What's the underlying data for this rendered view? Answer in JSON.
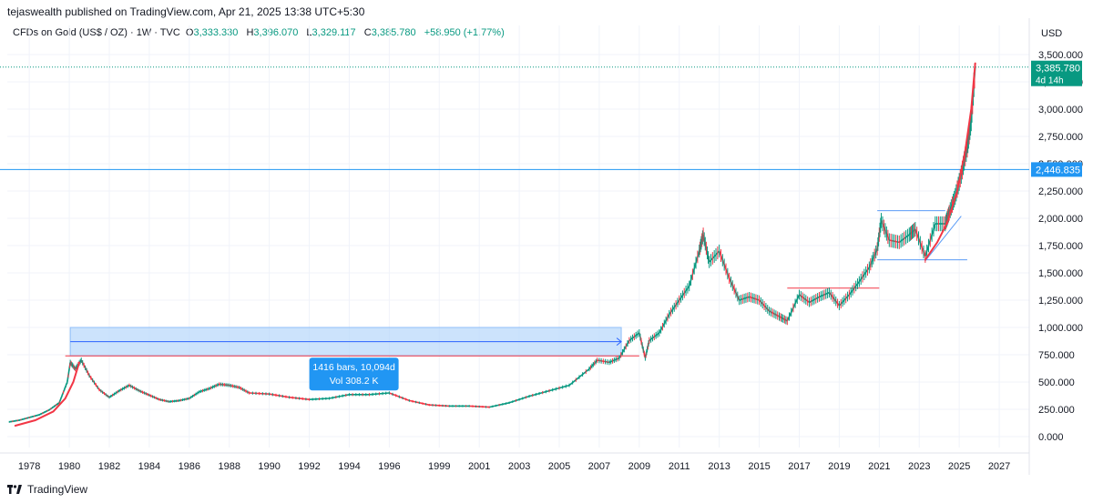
{
  "header": {
    "published": "tejaswealth published on TradingView.com, Apr 21, 2025 13:38 UTC+5:30"
  },
  "legend": {
    "symbol": "CFDs on Gold (US$ / OZ) · 1W · TVC",
    "open_key": "O",
    "open": "3,333.330",
    "high_key": "H",
    "high": "3,396.070",
    "low_key": "L",
    "low": "3,329.117",
    "close_key": "C",
    "close": "3,385.780",
    "change": "+58.950 (+1.77%)"
  },
  "footer": {
    "brand": "TradingView"
  },
  "colors": {
    "up": "#089981",
    "down": "#f23645",
    "curve": "#f23645",
    "hline": "#2962ff",
    "measure_fill": "#bbd9fb",
    "label_bg": "#2962ff"
  },
  "chart_data": {
    "type": "line",
    "currency": "USD",
    "ylim": [
      -100,
      3600
    ],
    "yticks": [
      "3,500.000",
      "3,250.000",
      "3,000.000",
      "2,750.000",
      "2,500.000",
      "2,250.000",
      "2,000.000",
      "1,750.000",
      "1,500.000",
      "1,250.000",
      "1,000.000",
      "750.000",
      "500.000",
      "250.000",
      "0.000"
    ],
    "ytick_values": [
      3500,
      3250,
      3000,
      2750,
      2500,
      2250,
      2000,
      1750,
      1500,
      1250,
      1000,
      750,
      500,
      250,
      0
    ],
    "xlim": [
      1976.9,
      2028.0
    ],
    "xticks": [
      "1978",
      "1980",
      "1982",
      "1984",
      "1986",
      "1988",
      "1990",
      "1992",
      "1994",
      "1996",
      "1999",
      "2001",
      "2003",
      "2005",
      "2007",
      "2009",
      "2011",
      "2013",
      "2015",
      "2017",
      "2019",
      "2021",
      "2023",
      "2025",
      "2027"
    ],
    "xtick_values": [
      1978,
      1980,
      1982,
      1984,
      1986,
      1988,
      1990,
      1992,
      1994,
      1996,
      1998.5,
      2000.5,
      2002.5,
      2004.5,
      2006.5,
      2008.5,
      2010.5,
      2012.5,
      2014.5,
      2016.5,
      2018.5,
      2020.5,
      2022.5,
      2024.5,
      2026.5
    ],
    "series": [
      {
        "x": [
          1977.0,
          1977.5,
          1978.0,
          1978.5,
          1979.0,
          1979.5,
          1979.9,
          1980.05,
          1980.3,
          1980.6,
          1981.0,
          1981.5,
          1982.0,
          1982.5,
          1983.0,
          1983.5,
          1984.0,
          1984.5,
          1985.0,
          1985.5,
          1986.0,
          1986.5,
          1987.0,
          1987.5,
          1988.0,
          1988.5,
          1989.0,
          1990.0,
          1991.0,
          1992.0,
          1993.0,
          1994.0,
          1995.0,
          1996.0,
          1997.0,
          1998.0,
          1999.0,
          2000.0,
          2001.0,
          2002.0,
          2003.0,
          2004.0,
          2005.0,
          2006.0,
          2006.4,
          2007.0,
          2007.5,
          2008.0,
          2008.5,
          2008.8,
          2009.0,
          2009.5,
          2010.0,
          2010.5,
          2011.0,
          2011.5,
          2011.7,
          2012.0,
          2012.5,
          2013.0,
          2013.5,
          2014.0,
          2014.5,
          2015.0,
          2015.5,
          2015.9,
          2016.5,
          2017.0,
          2017.5,
          2018.0,
          2018.5,
          2019.0,
          2019.5,
          2020.0,
          2020.4,
          2020.6,
          2021.0,
          2021.5,
          2022.0,
          2022.3,
          2022.8,
          2023.3,
          2023.8,
          2024.0,
          2024.3,
          2024.6,
          2024.9,
          2025.1,
          2025.3
        ],
        "y": [
          135,
          150,
          175,
          200,
          245,
          310,
          500,
          680,
          620,
          700,
          560,
          430,
          360,
          420,
          470,
          420,
          380,
          340,
          320,
          330,
          350,
          410,
          440,
          480,
          470,
          450,
          400,
          390,
          360,
          340,
          350,
          385,
          385,
          400,
          330,
          290,
          280,
          280,
          270,
          310,
          370,
          420,
          470,
          620,
          700,
          680,
          720,
          880,
          950,
          720,
          880,
          950,
          1120,
          1250,
          1380,
          1700,
          1850,
          1600,
          1700,
          1450,
          1250,
          1280,
          1250,
          1150,
          1100,
          1060,
          1300,
          1230,
          1280,
          1320,
          1200,
          1300,
          1420,
          1550,
          1720,
          1980,
          1800,
          1780,
          1850,
          1900,
          1650,
          1950,
          1950,
          2050,
          2200,
          2400,
          2650,
          2900,
          3385
        ]
      }
    ],
    "curves": [
      {
        "x": [
          1977.3,
          1978.3,
          1979.2,
          1979.8,
          1980.2,
          1980.5
        ],
        "y": [
          100,
          150,
          230,
          350,
          500,
          680
        ]
      },
      {
        "x": [
          2022.8,
          2023.4,
          2023.9,
          2024.4,
          2024.8,
          2025.1,
          2025.3
        ],
        "y": [
          1620,
          1780,
          1960,
          2250,
          2620,
          3000,
          3420
        ]
      }
    ],
    "levels": [
      {
        "value": 2446.835,
        "label": "2,446.835"
      },
      {
        "value": 3385.78,
        "label": "3,385.780",
        "sublabel": "4d 14h"
      }
    ],
    "measure": {
      "x": [
        1980.05,
        2007.6
      ],
      "y": [
        1000,
        740
      ],
      "label_line1": "1416 bars, 10,094d",
      "label_line2": "Vol 308.2 K"
    },
    "resistance_lines": [
      {
        "x": [
          1979.8,
          2008.5
        ],
        "y": 740
      },
      {
        "x": [
          2015.9,
          2020.5
        ],
        "y": 1360
      },
      {
        "x": [
          2020.4,
          2024.9
        ],
        "y": 1620
      },
      {
        "x": [
          2020.4,
          2023.8
        ],
        "y": 2070
      }
    ],
    "trendline": {
      "x": [
        2022.8,
        2024.6
      ],
      "y": [
        1610,
        2020
      ]
    }
  }
}
